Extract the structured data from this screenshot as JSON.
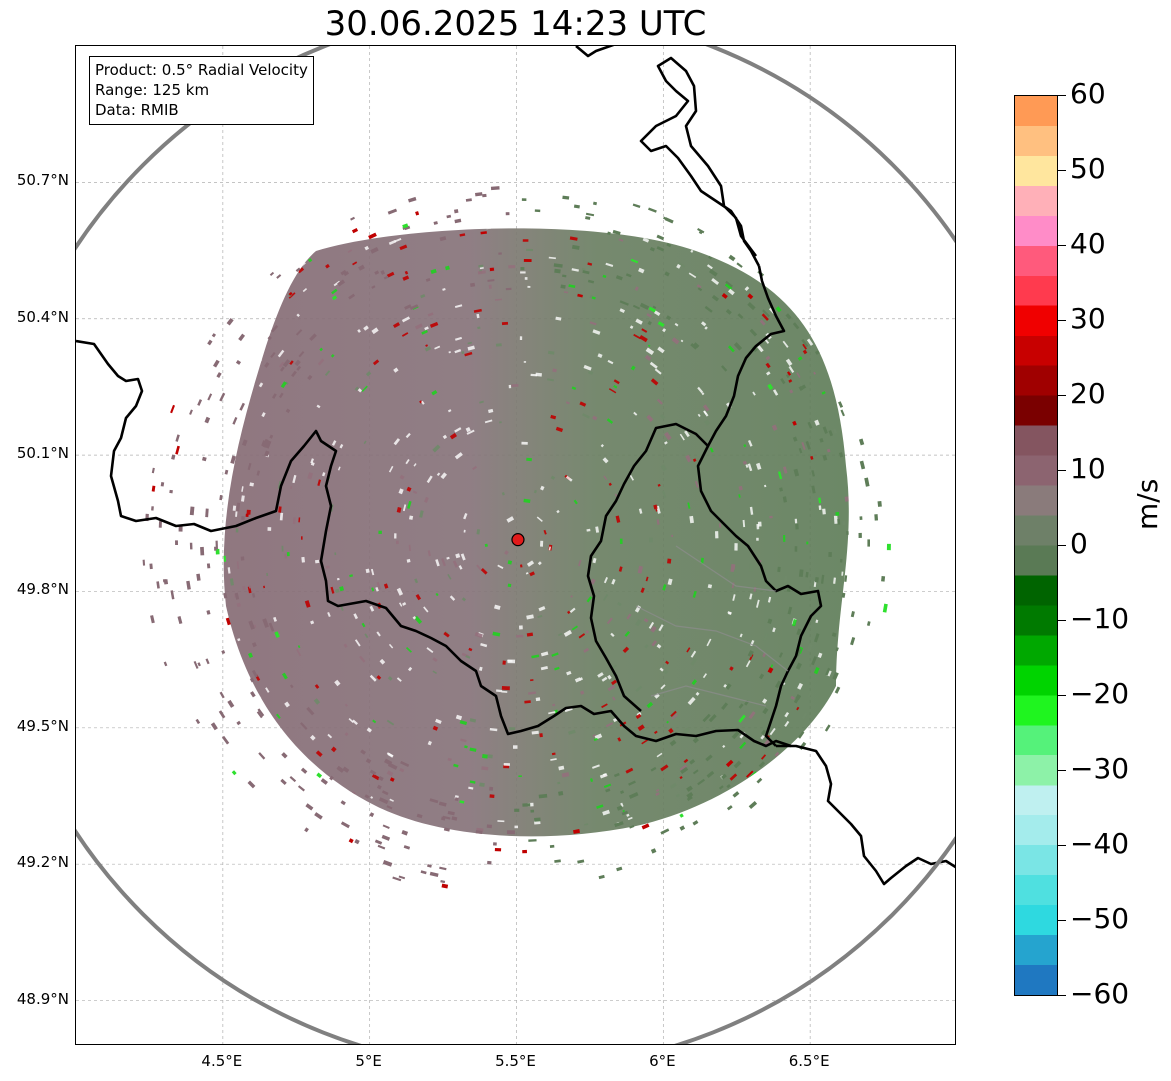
{
  "title": "30.06.2025 14:23 UTC",
  "info": {
    "product": "Product: 0.5° Radial Velocity",
    "range": "Range: 125 km",
    "data": "Data: RMIB"
  },
  "map": {
    "lon_range": [
      4.0,
      7.0
    ],
    "lat_range": [
      48.8,
      51.0
    ],
    "radar_site": {
      "lon": 5.505,
      "lat": 49.914
    },
    "lat_ticks": [
      {
        "value": 48.9,
        "label": "48.9°N"
      },
      {
        "value": 49.2,
        "label": "49.2°N"
      },
      {
        "value": 49.5,
        "label": "49.5°N"
      },
      {
        "value": 49.8,
        "label": "49.8°N"
      },
      {
        "value": 50.1,
        "label": "50.1°N"
      },
      {
        "value": 50.4,
        "label": "50.4°N"
      },
      {
        "value": 50.7,
        "label": "50.7°N"
      }
    ],
    "lon_ticks": [
      {
        "value": 4.5,
        "label": "4.5°E"
      },
      {
        "value": 5.0,
        "label": "5°E"
      },
      {
        "value": 5.5,
        "label": "5.5°E"
      },
      {
        "value": 6.0,
        "label": "6°E"
      },
      {
        "value": 6.5,
        "label": "6.5°E"
      }
    ],
    "colors": {
      "range_ring": "#808080",
      "border": "#000000",
      "grid": "#b0b0b0",
      "site_marker": "#e11b1b",
      "inbound_echo": "#5e7d58",
      "outbound_echo": "#876a74"
    }
  },
  "colorbar": {
    "unit": "m/s",
    "min": -60,
    "max": 60,
    "ticks": [
      {
        "value": 60,
        "label": "60"
      },
      {
        "value": 50,
        "label": "50"
      },
      {
        "value": 40,
        "label": "40"
      },
      {
        "value": 30,
        "label": "30"
      },
      {
        "value": 20,
        "label": "20"
      },
      {
        "value": 10,
        "label": "10"
      },
      {
        "value": 0,
        "label": "0"
      },
      {
        "value": -10,
        "label": "−10"
      },
      {
        "value": -20,
        "label": "−20"
      },
      {
        "value": -30,
        "label": "−30"
      },
      {
        "value": -40,
        "label": "−40"
      },
      {
        "value": -50,
        "label": "−50"
      },
      {
        "value": -60,
        "label": "−60"
      }
    ],
    "gradient": [
      "#1f78c1",
      "#25a4cf",
      "#2ed9e0",
      "#4fe0e0",
      "#7ae5e5",
      "#a4ecec",
      "#bff0f0",
      "#8df2a8",
      "#55f27a",
      "#1ff51f",
      "#00d400",
      "#00a800",
      "#007a00",
      "#006400",
      "#5a7a55",
      "#6e8068",
      "#8a7b7b",
      "#8c6470",
      "#845560",
      "#7a0000",
      "#a00000",
      "#c80000",
      "#f00000",
      "#ff3a4e",
      "#ff5a7c",
      "#ff8cc8",
      "#ffb0b8",
      "#ffe69e",
      "#ffc080",
      "#ff9a55"
    ]
  }
}
